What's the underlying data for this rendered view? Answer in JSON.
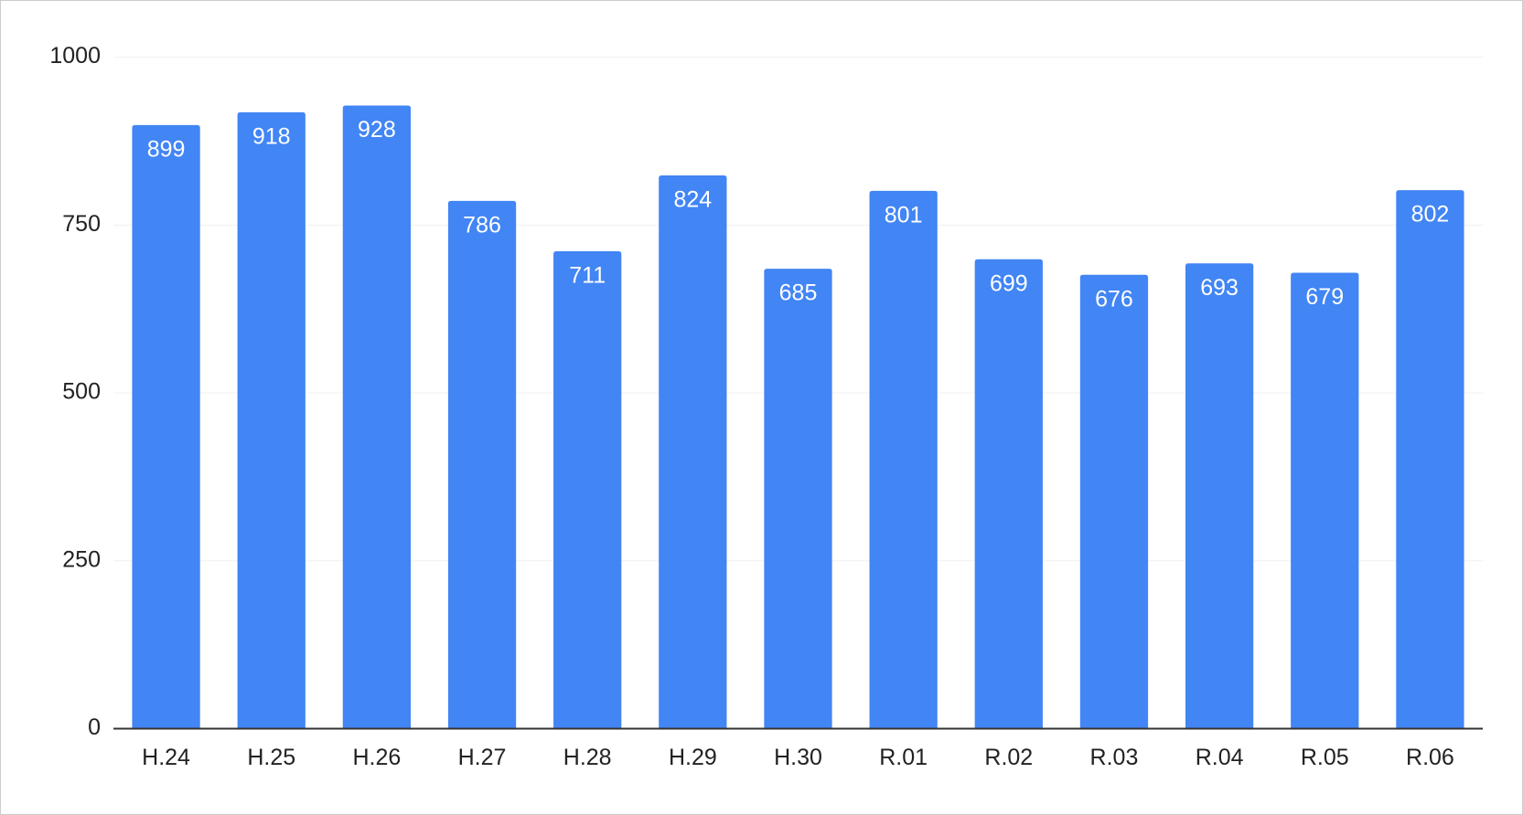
{
  "chart_data": {
    "type": "bar",
    "categories": [
      "H.24",
      "H.25",
      "H.26",
      "H.27",
      "H.28",
      "H.29",
      "H.30",
      "R.01",
      "R.02",
      "R.03",
      "R.04",
      "R.05",
      "R.06"
    ],
    "values": [
      899,
      918,
      928,
      786,
      711,
      824,
      685,
      801,
      699,
      676,
      693,
      679,
      802
    ],
    "color": "#4285f4",
    "ylim": [
      0,
      1000
    ],
    "yticks": [
      0,
      250,
      500,
      750,
      1000
    ],
    "grid": true
  }
}
